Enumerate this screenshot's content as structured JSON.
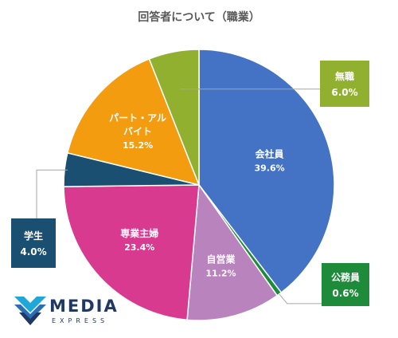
{
  "chart_data": {
    "type": "pie",
    "title": "回答者について（職業）",
    "slices": [
      {
        "label": "会社員",
        "value": 39.6,
        "value_label": "39.6%",
        "color": "#4472c4"
      },
      {
        "label": "公務員",
        "value": 0.6,
        "value_label": "0.6%",
        "color": "#1e8b3a"
      },
      {
        "label": "自営業",
        "value": 11.2,
        "value_label": "11.2%",
        "color": "#b983be"
      },
      {
        "label": "専業主婦",
        "value": 23.4,
        "value_label": "23.4%",
        "color": "#d83a8f"
      },
      {
        "label": "学生",
        "value": 4.0,
        "value_label": "4.0%",
        "color": "#1b4f72"
      },
      {
        "label": "パート・アルバイト",
        "label_lines": [
          "パート・アル",
          "バイト"
        ],
        "value": 15.2,
        "value_label": "15.2%",
        "color": "#f39c0f"
      },
      {
        "label": "無職",
        "value": 6.0,
        "value_label": "6.0%",
        "color": "#92b030"
      }
    ],
    "start_angle": "12 o'clock",
    "direction": "clockwise",
    "legend": "none"
  },
  "logo": {
    "name": "MEDIA",
    "sub": "EXPRESS",
    "color": "#1f3864"
  }
}
